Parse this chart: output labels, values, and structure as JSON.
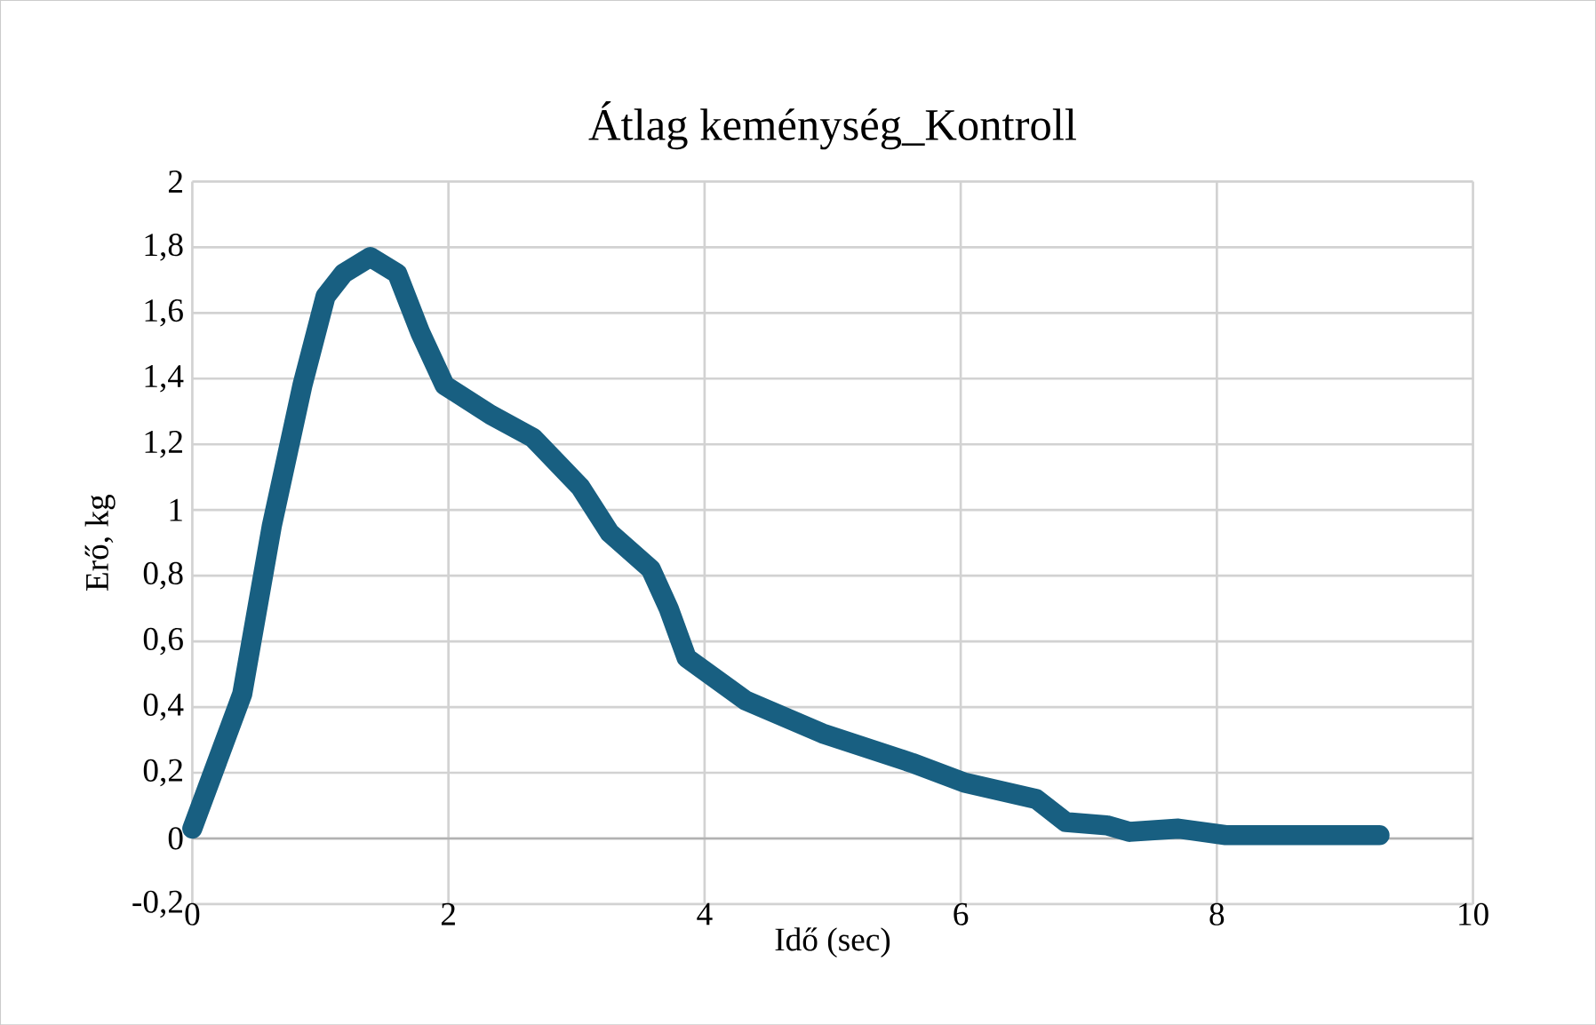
{
  "chart_data": {
    "type": "line",
    "title": "Átlag keménység_Kontroll",
    "xlabel": "Idő (sec)",
    "ylabel": "Erő, kg",
    "xlim": [
      0,
      10
    ],
    "ylim": [
      -0.2,
      2
    ],
    "xticks": [
      0,
      2,
      4,
      6,
      8,
      10
    ],
    "yticks": [
      {
        "value": -0.2,
        "label": "-0,2"
      },
      0,
      {
        "value": 0.2,
        "label": "0,2"
      },
      {
        "value": 0.4,
        "label": "0,4"
      },
      {
        "value": 0.6,
        "label": "0,6"
      },
      {
        "value": 0.8,
        "label": "0,8"
      },
      1,
      {
        "value": 1.2,
        "label": "1,2"
      },
      {
        "value": 1.4,
        "label": "1,4"
      },
      {
        "value": 1.6,
        "label": "1,6"
      },
      {
        "value": 1.8,
        "label": "1,8"
      },
      2
    ],
    "grid": true,
    "marker": "none",
    "line_style": "solid",
    "series": [
      {
        "color": "#185f81",
        "x": [
          0,
          0.39,
          0.62,
          0.86,
          1.04,
          1.18,
          1.39,
          1.6,
          1.78,
          1.97,
          2.33,
          2.66,
          3.03,
          3.26,
          3.58,
          3.72,
          3.86,
          4.32,
          4.92,
          5.62,
          6.03,
          6.59,
          6.82,
          7.14,
          7.32,
          7.7,
          8.07,
          9.27
        ],
        "values": [
          0.03,
          0.44,
          0.95,
          1.38,
          1.65,
          1.72,
          1.77,
          1.72,
          1.54,
          1.38,
          1.29,
          1.22,
          1.07,
          0.93,
          0.82,
          0.7,
          0.55,
          0.42,
          0.32,
          0.23,
          0.17,
          0.12,
          0.05,
          0.04,
          0.02,
          0.03,
          0.01,
          0.01
        ]
      }
    ]
  }
}
